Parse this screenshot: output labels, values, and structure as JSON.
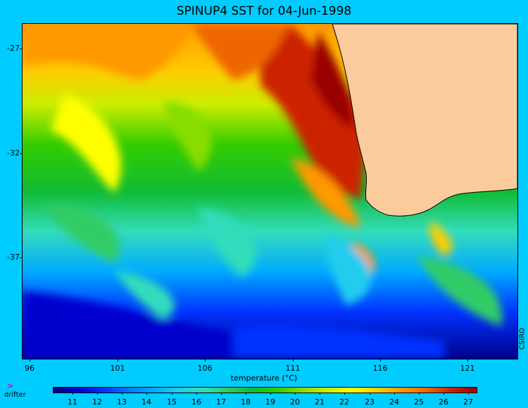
{
  "title": "SPINUP4 SST for 04-Jun-1998",
  "map": {
    "y_ticks": [
      "-27",
      "-32",
      "-37"
    ],
    "x_ticks": [
      "96",
      "101",
      "106",
      "111",
      "116",
      "121"
    ],
    "land_color": "#fccb9c",
    "coast_color": "#000000"
  },
  "credit": "CSIRO",
  "colorbar": {
    "title": "temperature (°C)",
    "labels": [
      "11",
      "12",
      "13",
      "14",
      "15",
      "16",
      "17",
      "18",
      "19",
      "20",
      "21",
      "22",
      "23",
      "24",
      "25",
      "26",
      "27"
    ],
    "colors": [
      "#00008b",
      "#0000cd",
      "#0033ff",
      "#0077ff",
      "#00aaff",
      "#22ccee",
      "#33ddbb",
      "#33cc66",
      "#11bb33",
      "#33cc00",
      "#88dd00",
      "#ccee00",
      "#ffff00",
      "#ffcc00",
      "#ff9900",
      "#ee6600",
      "#cc2200",
      "#990000"
    ]
  },
  "drifter": {
    "symbol": ">",
    "label": "drifter"
  }
}
